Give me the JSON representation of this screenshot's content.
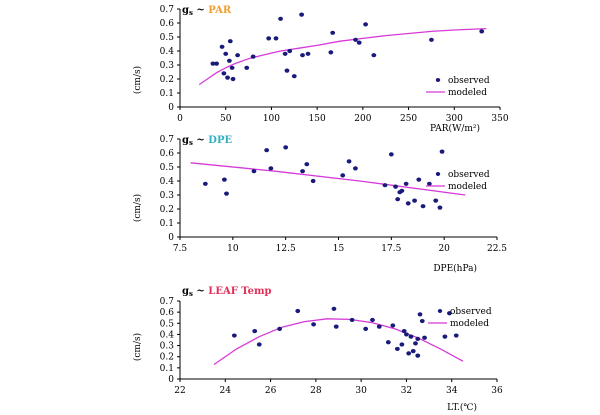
{
  "chart_data": [
    {
      "type": "scatter",
      "title": {
        "prefix": "g",
        "sub": "s",
        "tilde": " ~ ",
        "name": "PAR",
        "name_color": "#f0a030"
      },
      "xlabel": "PAR(W/m²)",
      "ylabel": "(cm/s)",
      "xlim": [
        0,
        350
      ],
      "ylim": [
        0,
        0.7
      ],
      "xticks": [
        0,
        50,
        100,
        150,
        200,
        250,
        300,
        350
      ],
      "xtick_labels": [
        "0",
        "50",
        "100",
        "150",
        "200",
        "250",
        "300",
        "350"
      ],
      "yticks": [
        0,
        0.1,
        0.2,
        0.3,
        0.4,
        0.5,
        0.6,
        0.7
      ],
      "ytick_labels": [
        "0",
        "0.1",
        "0.2",
        "0.3",
        "0.4",
        "0.5",
        "0.6",
        "0.7"
      ],
      "legend": {
        "position": "right",
        "observed": "observed",
        "modeled": "modeled"
      },
      "colors": {
        "observed": "#1a1a7a",
        "modeled": "#d63ad8"
      },
      "series": [
        {
          "name": "observed",
          "points": [
            [
              36,
              0.31
            ],
            [
              40,
              0.31
            ],
            [
              46,
              0.43
            ],
            [
              48,
              0.24
            ],
            [
              50,
              0.38
            ],
            [
              52,
              0.21
            ],
            [
              54,
              0.33
            ],
            [
              55,
              0.47
            ],
            [
              57,
              0.28
            ],
            [
              58,
              0.2
            ],
            [
              63,
              0.37
            ],
            [
              73,
              0.28
            ],
            [
              80,
              0.36
            ],
            [
              97,
              0.49
            ],
            [
              105,
              0.49
            ],
            [
              110,
              0.63
            ],
            [
              115,
              0.38
            ],
            [
              117,
              0.26
            ],
            [
              120,
              0.4
            ],
            [
              125,
              0.22
            ],
            [
              133,
              0.66
            ],
            [
              134,
              0.37
            ],
            [
              140,
              0.38
            ],
            [
              165,
              0.39
            ],
            [
              167,
              0.53
            ],
            [
              192,
              0.48
            ],
            [
              196,
              0.46
            ],
            [
              203,
              0.59
            ],
            [
              212,
              0.37
            ],
            [
              275,
              0.48
            ],
            [
              330,
              0.54
            ]
          ]
        },
        {
          "name": "modeled",
          "curve": [
            [
              21,
              0.16
            ],
            [
              30,
              0.2
            ],
            [
              40,
              0.245
            ],
            [
              50,
              0.28
            ],
            [
              60,
              0.31
            ],
            [
              75,
              0.345
            ],
            [
              90,
              0.37
            ],
            [
              110,
              0.4
            ],
            [
              130,
              0.42
            ],
            [
              150,
              0.44
            ],
            [
              175,
              0.47
            ],
            [
              200,
              0.49
            ],
            [
              225,
              0.51
            ],
            [
              250,
              0.525
            ],
            [
              275,
              0.54
            ],
            [
              300,
              0.55
            ],
            [
              335,
              0.56
            ]
          ]
        }
      ]
    },
    {
      "type": "scatter",
      "title": {
        "prefix": "g",
        "sub": "s",
        "tilde": " ~ ",
        "name": "DPE",
        "name_color": "#30b0c0"
      },
      "xlabel": "DPE(hPa)",
      "ylabel": "(cm/s)",
      "xlim": [
        7.5,
        22.5
      ],
      "ylim": [
        0,
        0.7
      ],
      "xticks": [
        7.5,
        10,
        12.5,
        15,
        17.5,
        20,
        22.5
      ],
      "xtick_labels": [
        "7.5",
        "10",
        "12.5",
        "15",
        "17.5",
        "20",
        "22.5"
      ],
      "yticks": [
        0,
        0.1,
        0.2,
        0.3,
        0.4,
        0.5,
        0.6,
        0.7
      ],
      "ytick_labels": [
        "0",
        "0.1",
        "0.2",
        "0.3",
        "0.4",
        "0.5",
        "0.6",
        "0.7"
      ],
      "legend": {
        "position": "top-right",
        "observed": "observed",
        "modeled": "modeled"
      },
      "colors": {
        "observed": "#1a1a7a",
        "modeled": "#d63ad8"
      },
      "series": [
        {
          "name": "observed",
          "points": [
            [
              8.7,
              0.38
            ],
            [
              9.6,
              0.41
            ],
            [
              9.7,
              0.31
            ],
            [
              11.0,
              0.47
            ],
            [
              11.6,
              0.62
            ],
            [
              11.8,
              0.49
            ],
            [
              12.5,
              0.64
            ],
            [
              13.3,
              0.47
            ],
            [
              13.5,
              0.52
            ],
            [
              13.8,
              0.4
            ],
            [
              15.2,
              0.44
            ],
            [
              15.5,
              0.54
            ],
            [
              15.8,
              0.49
            ],
            [
              17.2,
              0.37
            ],
            [
              17.5,
              0.59
            ],
            [
              17.7,
              0.36
            ],
            [
              17.8,
              0.27
            ],
            [
              17.9,
              0.32
            ],
            [
              18.0,
              0.33
            ],
            [
              18.2,
              0.38
            ],
            [
              18.6,
              0.26
            ],
            [
              18.8,
              0.41
            ],
            [
              19.0,
              0.22
            ],
            [
              19.3,
              0.38
            ],
            [
              19.6,
              0.26
            ],
            [
              19.8,
              0.21
            ],
            [
              19.9,
              0.61
            ],
            [
              18.3,
              0.24
            ]
          ]
        },
        {
          "name": "modeled",
          "curve": [
            [
              8,
              0.53
            ],
            [
              12,
              0.47
            ],
            [
              16,
              0.4
            ],
            [
              21,
              0.3
            ]
          ]
        }
      ]
    },
    {
      "type": "scatter",
      "title": {
        "prefix": "g",
        "sub": "s",
        "tilde": " ~ ",
        "name": "LEAF Temp",
        "name_color": "#e0305a"
      },
      "xlabel": "LT.(℃)",
      "ylabel": "(cm/s)",
      "xlim": [
        22,
        36
      ],
      "ylim": [
        0,
        0.7
      ],
      "xticks": [
        22,
        24,
        26,
        28,
        30,
        32,
        34,
        36
      ],
      "xtick_labels": [
        "22",
        "24",
        "26",
        "28",
        "30",
        "32",
        "34",
        "36"
      ],
      "yticks": [
        0,
        0.1,
        0.2,
        0.3,
        0.4,
        0.5,
        0.6,
        0.7
      ],
      "ytick_labels": [
        "0",
        "0.1",
        "0.2",
        "0.3",
        "0.4",
        "0.5",
        "0.6",
        "0.7"
      ],
      "legend": {
        "position": "top-right",
        "observed": "observed",
        "modeled": "modeled"
      },
      "colors": {
        "observed": "#1a1a7a",
        "modeled": "#d63ad8"
      },
      "series": [
        {
          "name": "observed",
          "points": [
            [
              24.4,
              0.39
            ],
            [
              25.3,
              0.43
            ],
            [
              25.5,
              0.31
            ],
            [
              26.4,
              0.45
            ],
            [
              27.2,
              0.61
            ],
            [
              27.9,
              0.49
            ],
            [
              28.8,
              0.63
            ],
            [
              28.9,
              0.47
            ],
            [
              29.6,
              0.53
            ],
            [
              30.2,
              0.45
            ],
            [
              30.5,
              0.53
            ],
            [
              30.8,
              0.47
            ],
            [
              31.2,
              0.33
            ],
            [
              31.4,
              0.48
            ],
            [
              31.6,
              0.27
            ],
            [
              31.8,
              0.31
            ],
            [
              31.9,
              0.43
            ],
            [
              32.0,
              0.4
            ],
            [
              32.1,
              0.23
            ],
            [
              32.2,
              0.38
            ],
            [
              32.3,
              0.25
            ],
            [
              32.4,
              0.32
            ],
            [
              32.5,
              0.21
            ],
            [
              32.5,
              0.36
            ],
            [
              32.6,
              0.58
            ],
            [
              32.7,
              0.52
            ],
            [
              32.8,
              0.37
            ],
            [
              33.7,
              0.38
            ],
            [
              33.9,
              0.59
            ],
            [
              34.2,
              0.39
            ]
          ]
        },
        {
          "name": "modeled",
          "curve": [
            [
              23.5,
              0.13
            ],
            [
              24.5,
              0.27
            ],
            [
              25.5,
              0.38
            ],
            [
              26.5,
              0.465
            ],
            [
              27.5,
              0.515
            ],
            [
              28.5,
              0.54
            ],
            [
              29.5,
              0.535
            ],
            [
              30.5,
              0.505
            ],
            [
              31.5,
              0.45
            ],
            [
              32.5,
              0.37
            ],
            [
              33.5,
              0.27
            ],
            [
              34.5,
              0.16
            ]
          ]
        }
      ]
    }
  ]
}
